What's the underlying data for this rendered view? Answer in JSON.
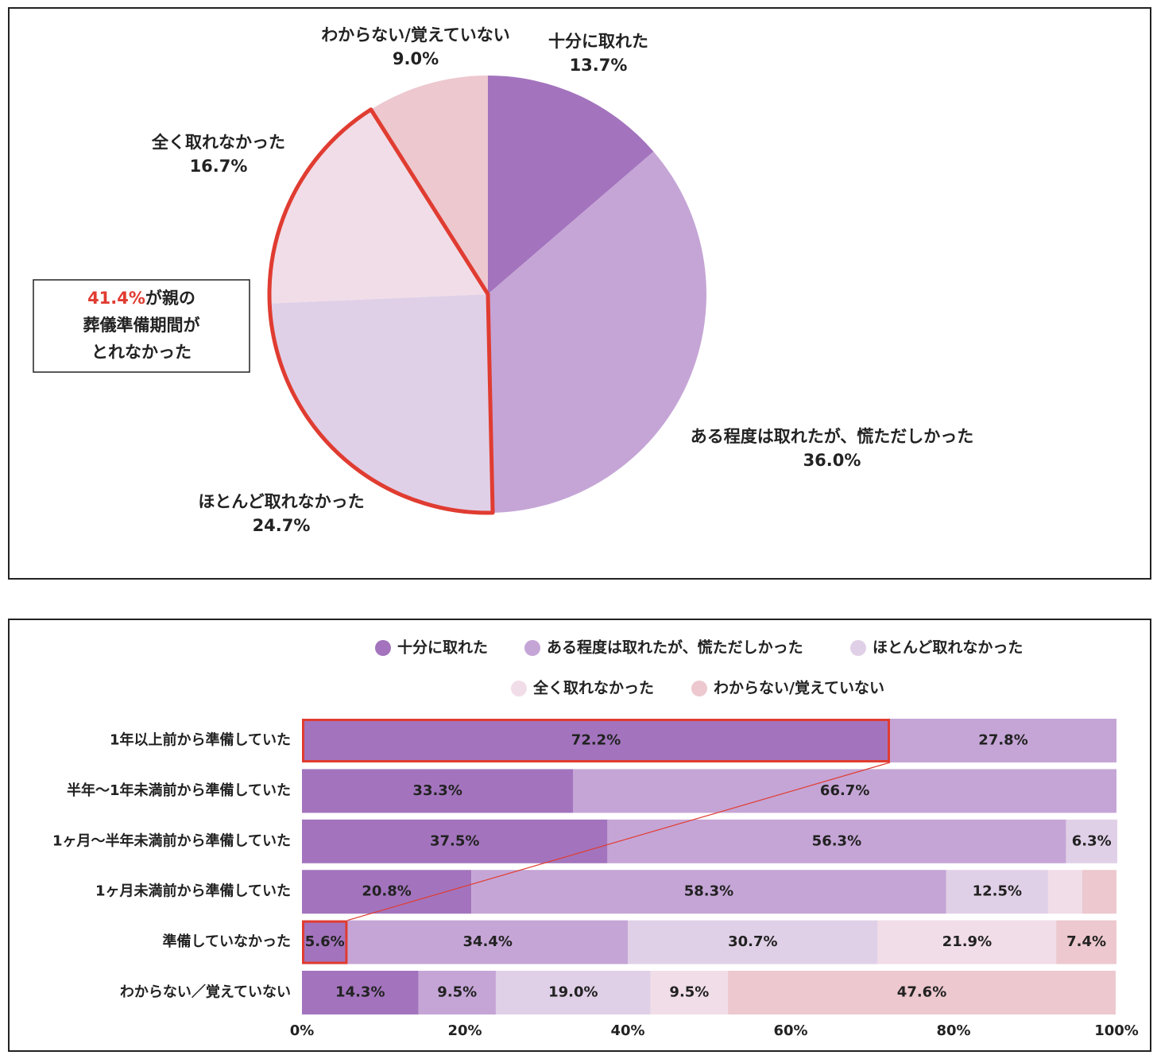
{
  "chart_data": [
    {
      "type": "pie",
      "categories": [
        "十分に取れた",
        "ある程度は取れたが、慌ただしかった",
        "ほとんど取れなかった",
        "全く取れなかった",
        "わからない/覚えていない"
      ],
      "values": [
        13.7,
        36.0,
        24.7,
        16.7,
        9.0
      ],
      "value_labels": [
        "13.7%",
        "36.0%",
        "24.7%",
        "16.7%",
        "9.0%"
      ],
      "colors": [
        "#a374bd",
        "#c5a5d6",
        "#e0d0e7",
        "#f1dde8",
        "#edc8cf"
      ],
      "annotation": {
        "highlight": "41.4%",
        "lines": [
          "が親の",
          "葬儀準備期間が",
          "とれなかった"
        ]
      }
    },
    {
      "type": "stacked-bar-horizontal",
      "categories": [
        "1年以上前から準備していた",
        "半年～1年未満前から準備していた",
        "1ヶ月～半年未満前から準備していた",
        "1ヶ月未満前から準備していた",
        "準備していなかった",
        "わからない／覚えていない"
      ],
      "series": [
        {
          "name": "十分に取れた",
          "color": "#a374bd",
          "values": [
            72.2,
            33.3,
            37.5,
            20.8,
            5.6,
            14.3
          ],
          "value_labels": [
            "72.2%",
            "33.3%",
            "37.5%",
            "20.8%",
            "5.6%",
            "14.3%"
          ]
        },
        {
          "name": "ある程度は取れたが、慌ただしかった",
          "color": "#c5a5d6",
          "values": [
            27.8,
            66.7,
            56.3,
            58.3,
            34.4,
            9.5
          ],
          "value_labels": [
            "27.8%",
            "66.7%",
            "56.3%",
            "58.3%",
            "34.4%",
            "9.5%"
          ]
        },
        {
          "name": "ほとんど取れなかった",
          "color": "#e0d0e7",
          "values": [
            null,
            null,
            6.3,
            12.5,
            30.7,
            19.0
          ],
          "value_labels": [
            null,
            null,
            "6.3%",
            "12.5%",
            "30.7%",
            "19.0%"
          ]
        },
        {
          "name": "全く取れなかった",
          "color": "#f1dde8",
          "values": [
            null,
            null,
            null,
            4.2,
            21.9,
            9.5
          ],
          "value_labels": [
            null,
            null,
            null,
            null,
            "21.9%",
            "9.5%"
          ]
        },
        {
          "name": "わからない/覚えていない",
          "color": "#edc8cf",
          "values": [
            null,
            null,
            null,
            4.2,
            7.4,
            47.6
          ],
          "value_labels": [
            null,
            null,
            null,
            null,
            "7.4%",
            "47.6%"
          ]
        }
      ],
      "xlim": [
        0,
        100
      ],
      "xticks": [
        {
          "value": 0,
          "label": "0%"
        },
        {
          "value": 20,
          "label": "20%"
        },
        {
          "value": 40,
          "label": "40%"
        },
        {
          "value": 60,
          "label": "60%"
        },
        {
          "value": 80,
          "label": "80%"
        },
        {
          "value": 100,
          "label": "100%"
        }
      ]
    }
  ]
}
